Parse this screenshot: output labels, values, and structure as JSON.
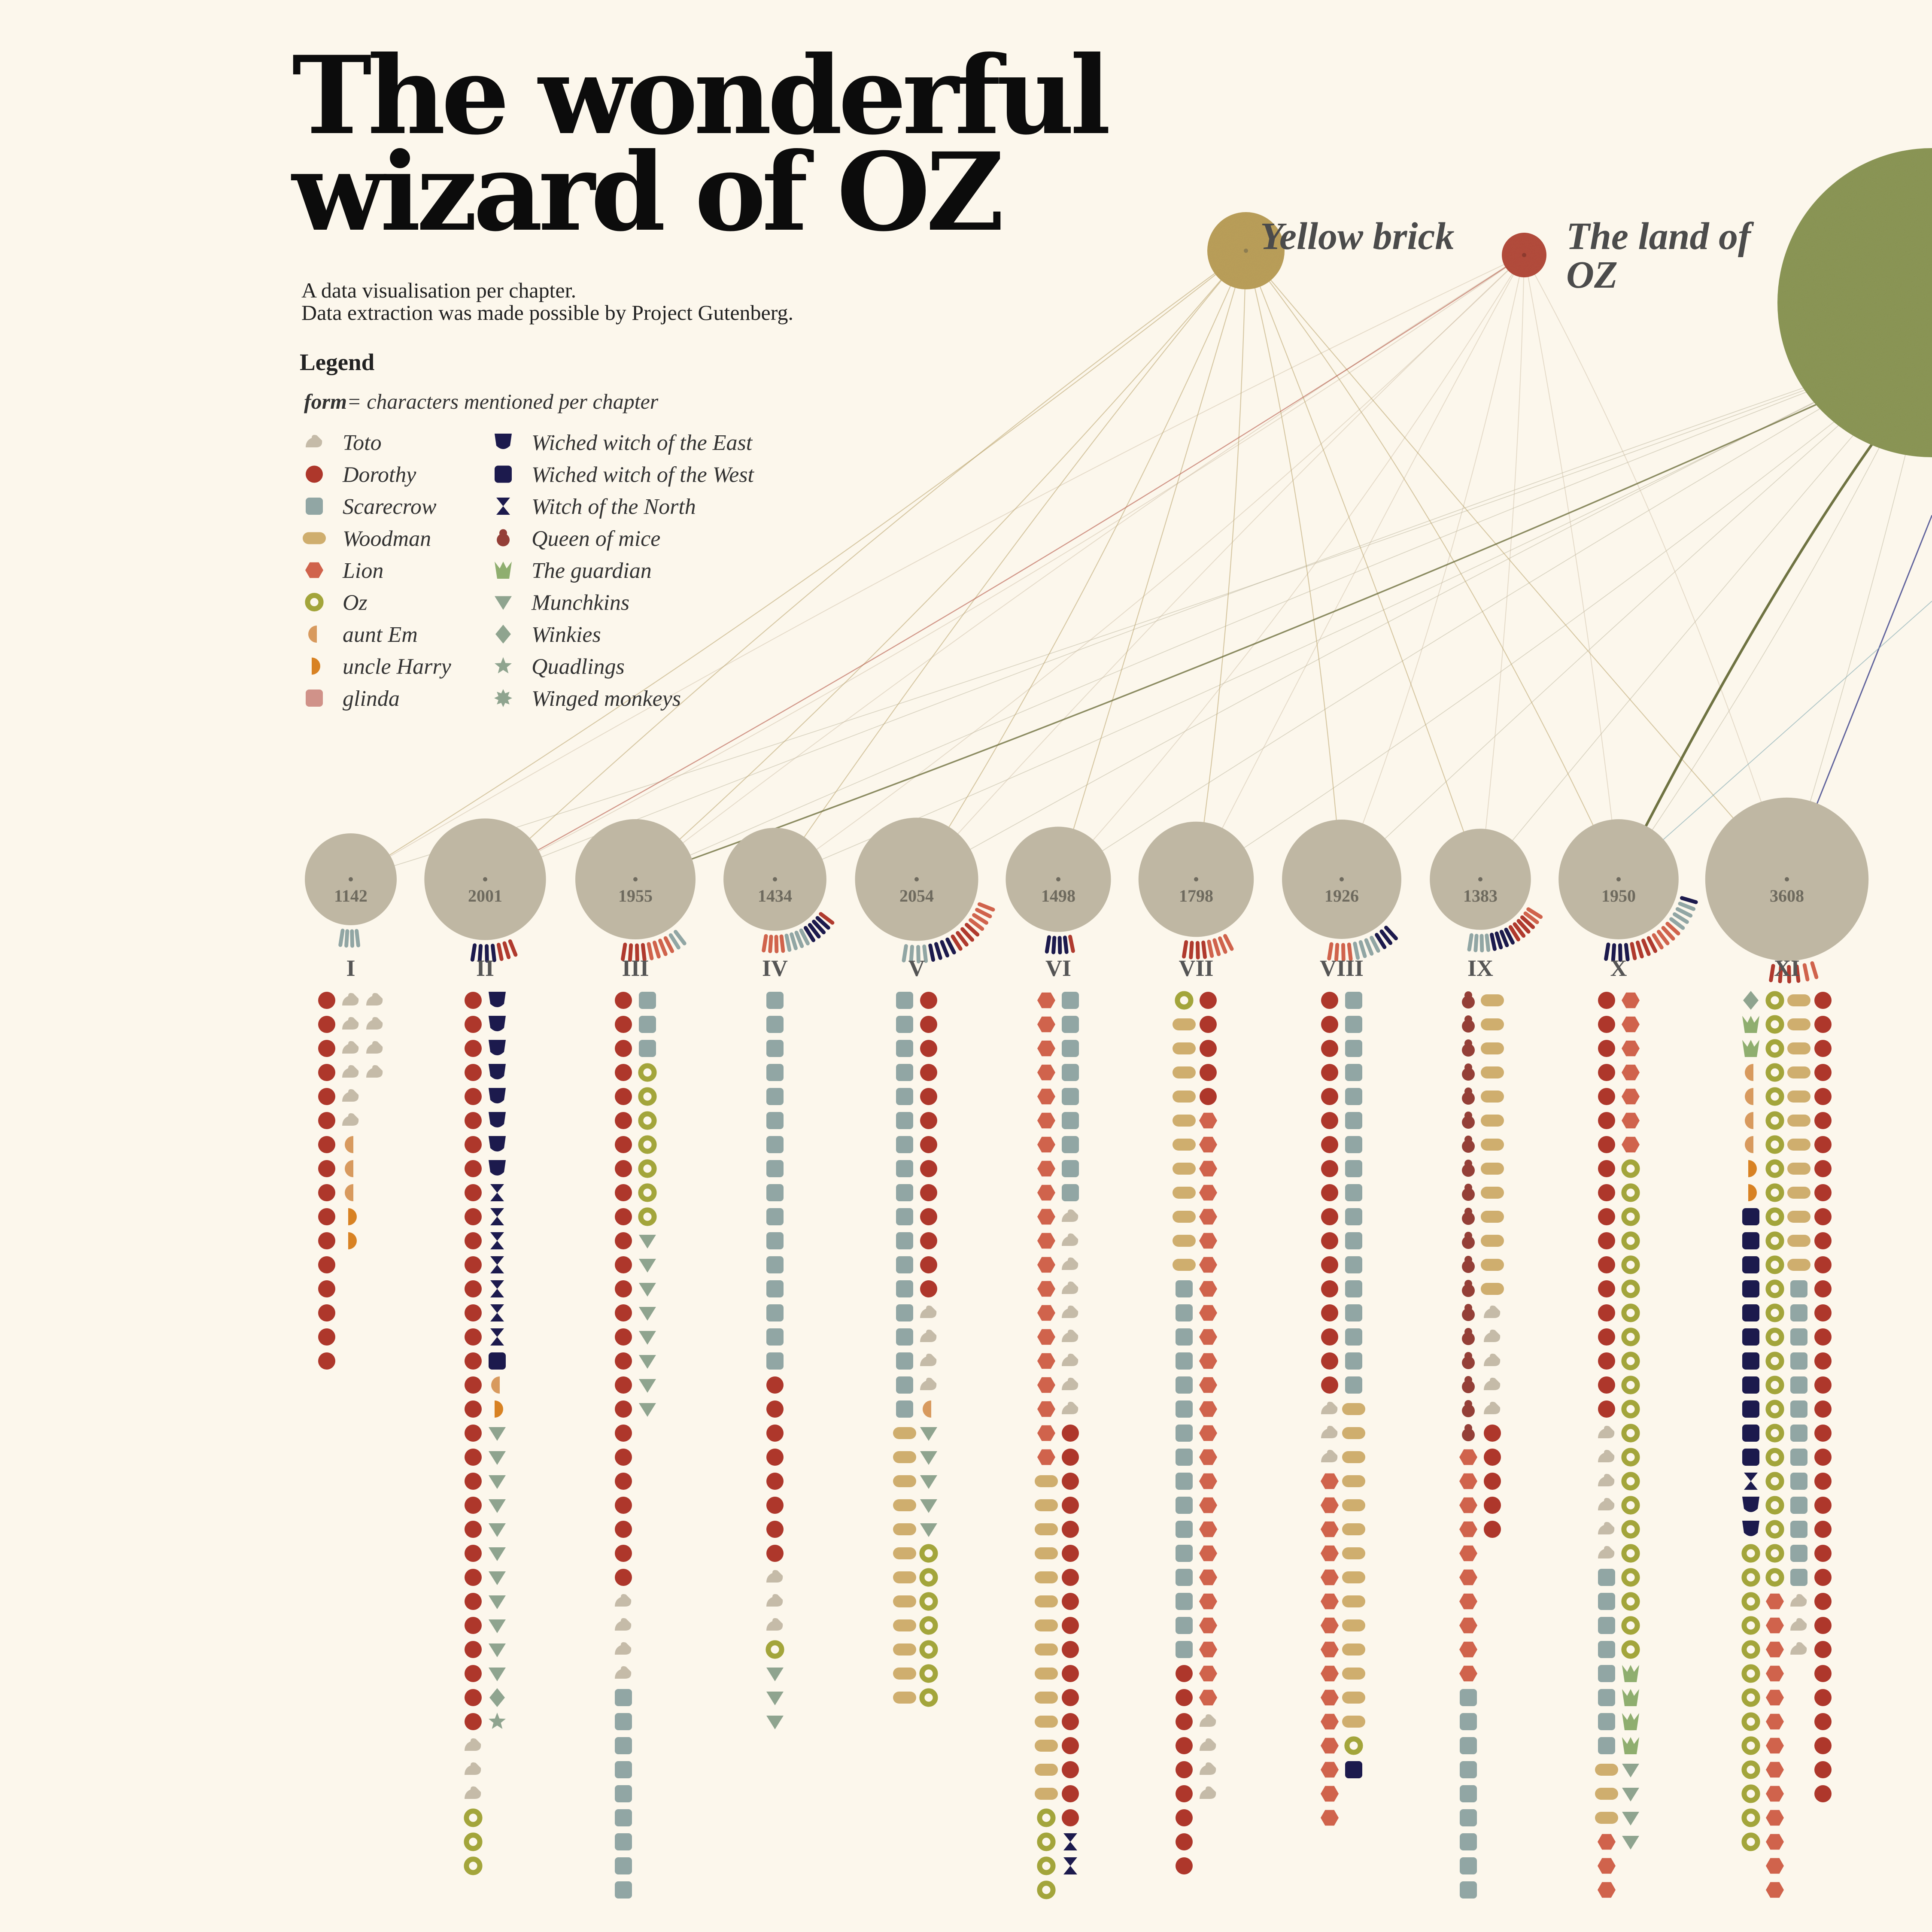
{
  "header": {
    "title_line1": "The wonderful",
    "title_line2": "wizard of OZ",
    "subtitle_line1": "A data visualisation per chapter.",
    "subtitle_line2": "Data extraction was made possible by Project Gutenberg."
  },
  "legend": {
    "heading": "Legend",
    "formula_bold": "form",
    "formula_rest": "= characters mentioned per chapter",
    "items": [
      {
        "label": "Toto",
        "shape": "toto",
        "color": "#c5bba8"
      },
      {
        "label": "Dorothy",
        "shape": "circle",
        "color": "#ae372b"
      },
      {
        "label": "Scarecrow",
        "shape": "square",
        "color": "#91a6a4"
      },
      {
        "label": "Woodman",
        "shape": "pill",
        "color": "#cfae6e"
      },
      {
        "label": "Lion",
        "shape": "hexagon",
        "color": "#d0634c"
      },
      {
        "label": "Oz",
        "shape": "ring",
        "color": "#a3a53b"
      },
      {
        "label": "aunt Em",
        "shape": "halfleft",
        "color": "#d89a5e"
      },
      {
        "label": "uncle Harry",
        "shape": "halfright",
        "color": "#d88223"
      },
      {
        "label": "glinda",
        "shape": "roundsq",
        "color": "#d09289"
      },
      {
        "label": "Wiched witch of the East",
        "shape": "shield",
        "color": "#1c1a4d"
      },
      {
        "label": "Wiched witch of the West",
        "shape": "square-dark",
        "color": "#1c1a4d"
      },
      {
        "label": "Witch of the North",
        "shape": "bowtie",
        "color": "#1c1a4d"
      },
      {
        "label": "Queen of mice",
        "shape": "mouse",
        "color": "#943f37"
      },
      {
        "label": "The guardian",
        "shape": "crown",
        "color": "#8fae6f"
      },
      {
        "label": "Munchkins",
        "shape": "triangle",
        "color": "#8fa48f"
      },
      {
        "label": "Winkies",
        "shape": "diamond",
        "color": "#8fa48f"
      },
      {
        "label": "Quadlings",
        "shape": "star",
        "color": "#8fa48f"
      },
      {
        "label": "Winged monkeys",
        "shape": "burst",
        "color": "#8fa48f"
      }
    ]
  },
  "themes": [
    {
      "label": "Yellow brick",
      "color": "#bfa35c",
      "size": 90
    },
    {
      "label_line1": "The land of",
      "label_line2": "OZ",
      "color": "#b84e3d",
      "size": 52
    },
    {
      "label": "",
      "color": "#8f9a58",
      "size": 360
    }
  ],
  "chart_data": {
    "type": "chapter-glyph-columns",
    "chapters": [
      {
        "numeral": "I",
        "words": 1142,
        "columns": [
          [
            {
              "c": "Dorothy",
              "n": 16
            }
          ],
          [
            {
              "c": "Toto",
              "n": 6
            },
            {
              "c": "aunt Em",
              "n": 3
            },
            {
              "c": "uncle Harry",
              "n": 2
            }
          ],
          [
            {
              "c": "Toto",
              "n": 4
            }
          ]
        ]
      },
      {
        "numeral": "II",
        "words": 2001,
        "columns": [
          [
            {
              "c": "Dorothy",
              "n": 31
            },
            {
              "c": "Toto",
              "n": 3
            },
            {
              "c": "Oz",
              "n": 3
            }
          ],
          [
            {
              "c": "Wiched witch of the East",
              "n": 8
            },
            {
              "c": "Witch of the North",
              "n": 7
            },
            {
              "c": "Wiched witch of the West",
              "n": 1
            },
            {
              "c": "aunt Em",
              "n": 1
            },
            {
              "c": "uncle Harry",
              "n": 1
            },
            {
              "c": "Munchkins",
              "n": 11
            },
            {
              "c": "Winkies",
              "n": 1
            },
            {
              "c": "Quadlings",
              "n": 1
            }
          ]
        ]
      },
      {
        "numeral": "III",
        "words": 1955,
        "columns": [
          [
            {
              "c": "Dorothy",
              "n": 25
            },
            {
              "c": "Toto",
              "n": 4
            },
            {
              "c": "Scarecrow",
              "n": 9
            }
          ],
          [
            {
              "c": "Scarecrow",
              "n": 3
            },
            {
              "c": "Oz",
              "n": 7
            },
            {
              "c": "Munchkins",
              "n": 8
            }
          ]
        ]
      },
      {
        "numeral": "IV",
        "words": 1434,
        "columns": [
          [
            {
              "c": "Scarecrow",
              "n": 16
            },
            {
              "c": "Dorothy",
              "n": 8
            },
            {
              "c": "Toto",
              "n": 3
            },
            {
              "c": "Oz",
              "n": 1
            },
            {
              "c": "Munchkins",
              "n": 3
            }
          ]
        ]
      },
      {
        "numeral": "V",
        "words": 2054,
        "columns": [
          [
            {
              "c": "Scarecrow",
              "n": 18
            },
            {
              "c": "Woodman",
              "n": 12
            }
          ],
          [
            {
              "c": "Dorothy",
              "n": 13
            },
            {
              "c": "Toto",
              "n": 4
            },
            {
              "c": "aunt Em",
              "n": 1
            },
            {
              "c": "Munchkins",
              "n": 5
            },
            {
              "c": "Oz",
              "n": 7
            }
          ]
        ]
      },
      {
        "numeral": "VI",
        "words": 1498,
        "columns": [
          [
            {
              "c": "Lion",
              "n": 20
            },
            {
              "c": "Woodman",
              "n": 14
            },
            {
              "c": "Oz",
              "n": 4
            }
          ],
          [
            {
              "c": "Scarecrow",
              "n": 9
            },
            {
              "c": "Toto",
              "n": 9
            },
            {
              "c": "Dorothy",
              "n": 17
            },
            {
              "c": "Witch of the North",
              "n": 2
            }
          ]
        ]
      },
      {
        "numeral": "VII",
        "words": 1798,
        "columns": [
          [
            {
              "c": "Oz",
              "n": 1
            },
            {
              "c": "Woodman",
              "n": 11
            },
            {
              "c": "Scarecrow",
              "n": 16
            },
            {
              "c": "Dorothy",
              "n": 9
            }
          ],
          [
            {
              "c": "Dorothy",
              "n": 5
            },
            {
              "c": "Lion",
              "n": 25
            },
            {
              "c": "Toto",
              "n": 4
            }
          ]
        ]
      },
      {
        "numeral": "VIII",
        "words": 1926,
        "columns": [
          [
            {
              "c": "Dorothy",
              "n": 17
            },
            {
              "c": "Toto",
              "n": 3
            },
            {
              "c": "Lion",
              "n": 15
            }
          ],
          [
            {
              "c": "Scarecrow",
              "n": 17
            },
            {
              "c": "Woodman",
              "n": 14
            },
            {
              "c": "Oz",
              "n": 1
            },
            {
              "c": "Wiched witch of the West",
              "n": 1
            }
          ]
        ]
      },
      {
        "numeral": "IX",
        "words": 1383,
        "columns": [
          [
            {
              "c": "Queen of mice",
              "n": 19
            },
            {
              "c": "Lion",
              "n": 10
            },
            {
              "c": "Scarecrow",
              "n": 10
            }
          ],
          [
            {
              "c": "Woodman",
              "n": 13
            },
            {
              "c": "Toto",
              "n": 5
            },
            {
              "c": "Dorothy",
              "n": 5
            }
          ]
        ]
      },
      {
        "numeral": "X",
        "words": 1950,
        "columns": [
          [
            {
              "c": "Dorothy",
              "n": 18
            },
            {
              "c": "Toto",
              "n": 6
            },
            {
              "c": "Scarecrow",
              "n": 8
            },
            {
              "c": "Woodman",
              "n": 3
            },
            {
              "c": "Lion",
              "n": 3
            }
          ],
          [
            {
              "c": "Lion",
              "n": 7
            },
            {
              "c": "Oz",
              "n": 21
            },
            {
              "c": "The guardian",
              "n": 4
            },
            {
              "c": "Munchkins",
              "n": 4
            }
          ]
        ]
      },
      {
        "numeral": "XI",
        "words": 3608,
        "columns": [
          [
            {
              "c": "Winkies",
              "n": 1
            },
            {
              "c": "The guardian",
              "n": 2
            },
            {
              "c": "aunt Em",
              "n": 4
            },
            {
              "c": "uncle Harry",
              "n": 2
            },
            {
              "c": "Wiched witch of the West",
              "n": 11
            },
            {
              "c": "Witch of the North",
              "n": 1
            },
            {
              "c": "Wiched witch of the East",
              "n": 2
            },
            {
              "c": "Oz",
              "n": 13
            }
          ],
          [
            {
              "c": "Oz",
              "n": 25
            },
            {
              "c": "Lion",
              "n": 13
            }
          ],
          [
            {
              "c": "Woodman",
              "n": 12
            },
            {
              "c": "Scarecrow",
              "n": 13
            },
            {
              "c": "Toto",
              "n": 3
            }
          ],
          [
            {
              "c": "Dorothy",
              "n": 23
            },
            {
              "c": "Dorothy",
              "n": 11
            }
          ]
        ]
      }
    ]
  }
}
